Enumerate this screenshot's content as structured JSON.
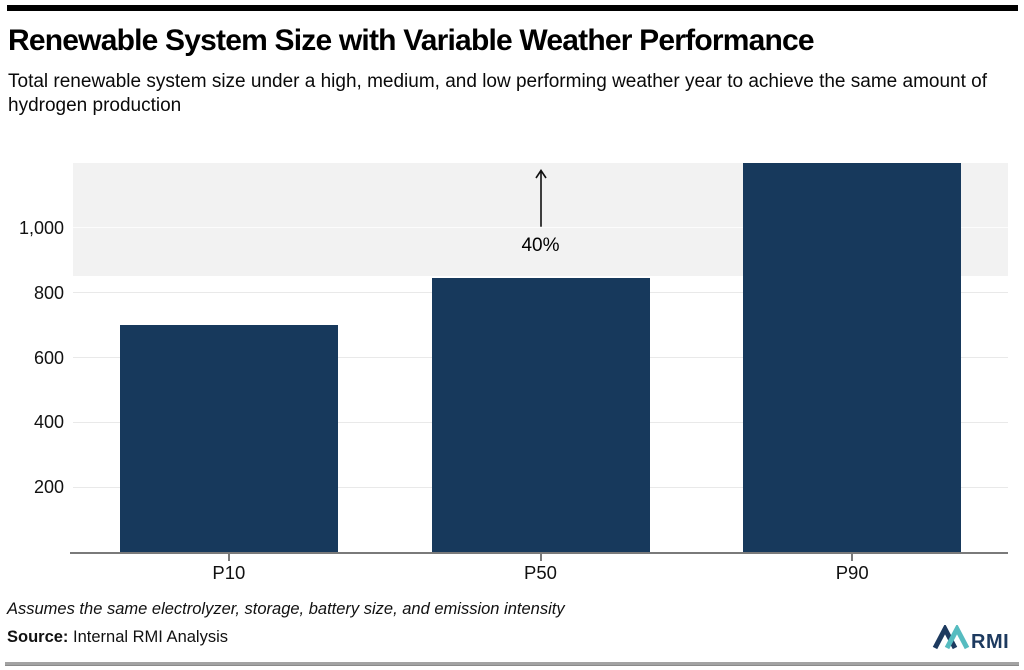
{
  "chart_data": {
    "type": "bar",
    "title": "Renewable System Size with Variable Weather Performance",
    "subtitle": "Total renewable system size under a high, medium, and low performing weather year to achieve the same amount of hydrogen production",
    "categories": [
      "P10",
      "P50",
      "P90"
    ],
    "values": [
      700,
      845,
      1200
    ],
    "xlabel": "",
    "ylabel": "",
    "ylim": [
      0,
      1200
    ],
    "yticks": [
      200,
      400,
      600,
      800,
      1000
    ],
    "grid": true,
    "legend": "none",
    "bar_color": "#17395c",
    "highlight_band": {
      "from_value": 850,
      "to_value": 1200,
      "color": "#f2f2f2"
    },
    "annotation": {
      "label": "40%",
      "category": "P50",
      "arrow_from_value": 1005,
      "arrow_to_value": 1180
    }
  },
  "footer": {
    "footnote": "Assumes the same electrolyzer, storage, battery size, and emission intensity",
    "source_label": "Source:",
    "source_text": " Internal RMI Analysis",
    "logo": {
      "text": "RMI",
      "navy": "#1d3a5f",
      "teal": "#56bcc0"
    }
  },
  "colors": {
    "top_rule": "#000000",
    "bottom_rule": "#a3a3a3",
    "axis": "#7a7a7a",
    "gridline": "#e9e9e9",
    "gridline_on_band": "#fcfcfc",
    "arrow": "#111111"
  }
}
